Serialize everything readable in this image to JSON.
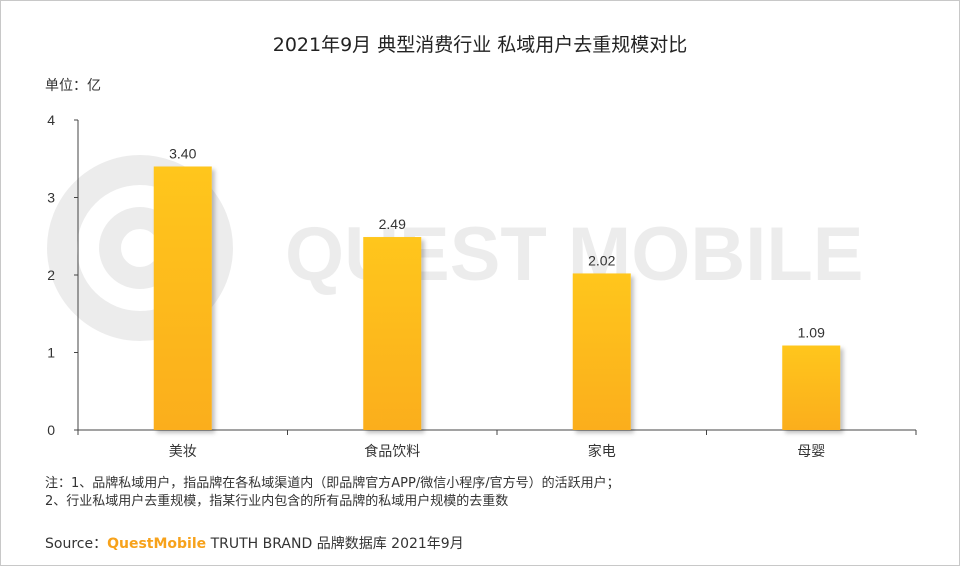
{
  "title": "2021年9月 典型消费行业 私域用户去重规模对比",
  "unit_label": "单位：亿",
  "watermark": "QUEST MOBILE",
  "notes": [
    "注：1、品牌私域用户，指品牌在各私域渠道内（即品牌官方APP/微信小程序/官方号）的活跃用户；",
    "2、行业私域用户去重规模，指某行业内包含的所有品牌的私域用户规模的去重数"
  ],
  "source": {
    "prefix": "Source：",
    "brand": "QuestMobile",
    "suffix": " TRUTH BRAND 品牌数据库 2021年9月"
  },
  "colors": {
    "bar_top": "#ffc61a",
    "bar_bottom": "#fbae1a",
    "brand": "#f7a21b"
  },
  "chart_data": {
    "type": "bar",
    "categories": [
      "美妆",
      "食品饮料",
      "家电",
      "母婴"
    ],
    "values": [
      3.4,
      2.49,
      2.02,
      1.09
    ],
    "value_labels": [
      "3.40",
      "2.49",
      "2.02",
      "1.09"
    ],
    "ylim": [
      0,
      4
    ],
    "yticks": [
      "0",
      "1",
      "2",
      "3",
      "4"
    ],
    "grid": false
  }
}
